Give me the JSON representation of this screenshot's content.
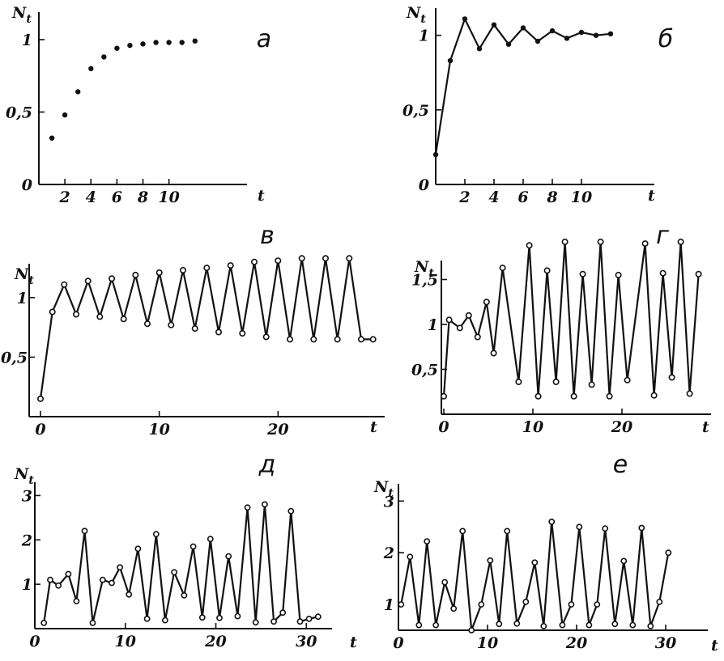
{
  "chart_data": [
    {
      "id": "a",
      "letter": "а",
      "type": "scatter",
      "marker": "filled",
      "connected": false,
      "ylabel": "N",
      "ylabel_sub": "t",
      "xlabel": "t",
      "xlim": [
        0,
        16
      ],
      "ylim": [
        0,
        1.05
      ],
      "xticks": [
        2,
        4,
        6,
        8,
        10
      ],
      "xtick_labels": [
        "2",
        "4",
        "6",
        "8",
        "10"
      ],
      "yticks": [
        0,
        0.5,
        1
      ],
      "ytick_labels": [
        "0",
        "0,5",
        "1"
      ],
      "x": [
        1,
        2,
        3,
        4,
        5,
        6,
        7,
        8,
        9,
        10,
        11,
        12
      ],
      "y": [
        0.32,
        0.48,
        0.64,
        0.8,
        0.88,
        0.94,
        0.96,
        0.97,
        0.98,
        0.98,
        0.98,
        0.99
      ]
    },
    {
      "id": "b",
      "letter": "б",
      "type": "line",
      "marker": "filled",
      "connected": true,
      "ylabel": "N",
      "ylabel_sub": "t",
      "xlabel": "t",
      "xlim": [
        0,
        15
      ],
      "ylim": [
        0,
        1.15
      ],
      "xticks": [
        2,
        4,
        6,
        8,
        10
      ],
      "xtick_labels": [
        "2",
        "4",
        "6",
        "8",
        "10"
      ],
      "yticks": [
        0,
        0.5,
        1
      ],
      "ytick_labels": [
        "0",
        "0,5",
        "1"
      ],
      "x": [
        0,
        1,
        2,
        3,
        4,
        5,
        6,
        7,
        8,
        9,
        10,
        11,
        12
      ],
      "y": [
        0.2,
        0.83,
        1.11,
        0.91,
        1.07,
        0.94,
        1.05,
        0.96,
        1.03,
        0.98,
        1.02,
        1.0,
        1.01
      ]
    },
    {
      "id": "v",
      "letter": "в",
      "type": "line",
      "marker": "open",
      "connected": true,
      "ylabel": "N",
      "ylabel_sub": "t",
      "xlabel": "t",
      "xlim": [
        0,
        30
      ],
      "ylim": [
        0,
        1.4
      ],
      "xticks": [
        0,
        10,
        20
      ],
      "xtick_labels": [
        "0",
        "10",
        "20"
      ],
      "yticks": [
        0.5,
        1
      ],
      "ytick_labels": [
        "0,5",
        "1"
      ],
      "x": [
        0,
        1,
        2,
        3,
        4,
        5,
        6,
        7,
        8,
        9,
        10,
        11,
        12,
        13,
        14,
        15,
        16,
        17,
        18,
        19,
        20,
        21,
        22,
        23,
        24,
        25,
        26,
        27,
        28
      ],
      "y": [
        0.15,
        0.88,
        1.11,
        0.86,
        1.14,
        0.84,
        1.16,
        0.82,
        1.19,
        0.78,
        1.21,
        0.77,
        1.23,
        0.74,
        1.25,
        0.71,
        1.27,
        0.7,
        1.3,
        0.67,
        1.31,
        0.65,
        1.33,
        0.65,
        1.33,
        0.65,
        1.33,
        0.65,
        0.65
      ]
    },
    {
      "id": "g",
      "letter": "г",
      "type": "line",
      "marker": "open",
      "connected": true,
      "ylabel": "N",
      "ylabel_sub": "t",
      "xlabel": "t",
      "xlim": [
        0,
        30
      ],
      "ylim": [
        0,
        2.0
      ],
      "xticks": [
        0,
        10,
        20
      ],
      "xtick_labels": [
        "0",
        "10",
        "20"
      ],
      "yticks": [
        0.5,
        1,
        1.5
      ],
      "ytick_labels": [
        "0,5",
        "1",
        "1,5"
      ],
      "x": [
        0,
        0.6,
        1.8,
        2.8,
        3.8,
        4.8,
        5.6,
        6.6,
        8.4,
        9.6,
        10.6,
        11.6,
        12.6,
        13.6,
        14.6,
        15.6,
        16.6,
        17.6,
        18.6,
        19.6,
        20.6,
        22.6,
        23.6,
        24.6,
        25.6,
        26.6,
        27.6,
        28.6
      ],
      "y": [
        0.2,
        1.05,
        0.96,
        1.1,
        0.86,
        1.25,
        0.68,
        1.63,
        0.36,
        1.88,
        0.2,
        1.6,
        0.36,
        1.92,
        0.2,
        1.56,
        0.33,
        1.92,
        0.2,
        1.55,
        0.38,
        1.9,
        0.21,
        1.57,
        0.41,
        1.92,
        0.23,
        1.56
      ]
    },
    {
      "id": "d",
      "letter": "д",
      "type": "line",
      "marker": "open",
      "connected": true,
      "ylabel": "N",
      "ylabel_sub": "t",
      "xlabel": "t",
      "xlim": [
        0,
        34
      ],
      "ylim": [
        0,
        3.3
      ],
      "xticks": [
        0,
        10,
        20,
        30
      ],
      "xtick_labels": [
        "0",
        "10",
        "20",
        "30"
      ],
      "yticks": [
        1,
        2,
        3
      ],
      "ytick_labels": [
        "1",
        "2",
        "3"
      ],
      "x": [
        1,
        1.7,
        2.6,
        3.7,
        4.6,
        5.5,
        6.4,
        7.5,
        8.5,
        9.4,
        10.4,
        11.4,
        12.4,
        13.4,
        14.4,
        15.4,
        16.5,
        17.5,
        18.5,
        19.4,
        20.4,
        21.4,
        22.4,
        23.5,
        24.4,
        25.4,
        26.4,
        27.4,
        28.3,
        29.3,
        30.3,
        31.3
      ],
      "y": [
        0.13,
        1.1,
        0.97,
        1.23,
        0.62,
        2.2,
        0.13,
        1.1,
        1.03,
        1.38,
        0.77,
        1.8,
        0.22,
        2.13,
        0.19,
        1.27,
        0.75,
        1.85,
        0.25,
        2.02,
        0.24,
        1.63,
        0.28,
        2.73,
        0.14,
        2.8,
        0.16,
        0.36,
        2.65,
        0.16,
        0.22,
        0.27
      ]
    },
    {
      "id": "e",
      "letter": "е",
      "type": "line",
      "marker": "open",
      "connected": true,
      "ylabel": "N",
      "ylabel_sub": "t",
      "xlabel": "t",
      "xlim": [
        0,
        34
      ],
      "ylim": [
        0.5,
        3.6
      ],
      "xticks": [
        0,
        10,
        20,
        30
      ],
      "xtick_labels": [
        "0",
        "10",
        "20",
        "30"
      ],
      "yticks": [
        1,
        2,
        3
      ],
      "ytick_labels": [
        "1",
        "2",
        "3"
      ],
      "x": [
        0.3,
        1.3,
        2.3,
        3.2,
        4.2,
        5.2,
        6.2,
        7.2,
        8.2,
        9.3,
        10.3,
        11.3,
        12.2,
        13.3,
        14.3,
        15.3,
        16.3,
        17.2,
        18.4,
        19.4,
        20.3,
        21.4,
        22.3,
        23.2,
        24.3,
        25.3,
        26.3,
        27.3,
        28.3,
        29.3,
        30.3
      ],
      "y": [
        1.0,
        1.92,
        0.6,
        2.22,
        0.6,
        1.43,
        0.92,
        2.42,
        0.5,
        1.0,
        1.85,
        0.62,
        2.42,
        0.63,
        1.05,
        1.81,
        0.58,
        2.6,
        0.6,
        1.0,
        2.5,
        0.6,
        1.0,
        2.47,
        0.62,
        1.84,
        0.6,
        2.48,
        0.58,
        1.05,
        2.0
      ]
    }
  ]
}
